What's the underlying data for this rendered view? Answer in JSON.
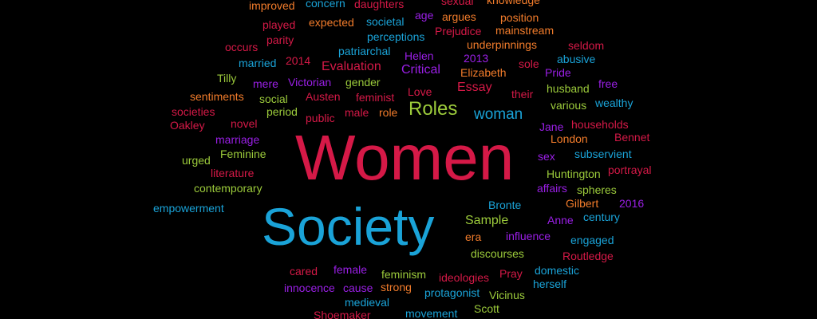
{
  "palette": {
    "red": "#d51947",
    "blue": "#1aa3d8",
    "green": "#9ccb3b",
    "purple": "#9a1fe6",
    "orange": "#f27c2b",
    "bg": "#000000"
  },
  "words": [
    {
      "text": "improved",
      "color": "orange"
    },
    {
      "text": "concern",
      "color": "blue"
    },
    {
      "text": "daughters",
      "color": "red"
    },
    {
      "text": "sexual",
      "color": "red"
    },
    {
      "text": "knowledge",
      "color": "orange"
    },
    {
      "text": "played",
      "color": "red"
    },
    {
      "text": "expected",
      "color": "orange"
    },
    {
      "text": "societal",
      "color": "blue"
    },
    {
      "text": "age",
      "color": "purple"
    },
    {
      "text": "argues",
      "color": "orange"
    },
    {
      "text": "position",
      "color": "orange"
    },
    {
      "text": "parity",
      "color": "red"
    },
    {
      "text": "perceptions",
      "color": "blue"
    },
    {
      "text": "Prejudice",
      "color": "red"
    },
    {
      "text": "mainstream",
      "color": "orange"
    },
    {
      "text": "occurs",
      "color": "red"
    },
    {
      "text": "patriarchal",
      "color": "blue"
    },
    {
      "text": "underpinnings",
      "color": "orange"
    },
    {
      "text": "seldom",
      "color": "red"
    },
    {
      "text": "married",
      "color": "blue"
    },
    {
      "text": "2014",
      "color": "red"
    },
    {
      "text": "Helen",
      "color": "purple"
    },
    {
      "text": "2013",
      "color": "purple"
    },
    {
      "text": "sole",
      "color": "red"
    },
    {
      "text": "abusive",
      "color": "blue"
    },
    {
      "text": "Evaluation",
      "color": "red"
    },
    {
      "text": "Critical",
      "color": "purple"
    },
    {
      "text": "Elizabeth",
      "color": "orange"
    },
    {
      "text": "Pride",
      "color": "purple"
    },
    {
      "text": "Tilly",
      "color": "green"
    },
    {
      "text": "mere",
      "color": "purple"
    },
    {
      "text": "Victorian",
      "color": "purple"
    },
    {
      "text": "gender",
      "color": "green"
    },
    {
      "text": "Essay",
      "color": "red"
    },
    {
      "text": "husband",
      "color": "green"
    },
    {
      "text": "free",
      "color": "purple"
    },
    {
      "text": "sentiments",
      "color": "orange"
    },
    {
      "text": "social",
      "color": "green"
    },
    {
      "text": "Austen",
      "color": "red"
    },
    {
      "text": "feminist",
      "color": "red"
    },
    {
      "text": "Love",
      "color": "red"
    },
    {
      "text": "their",
      "color": "red"
    },
    {
      "text": "various",
      "color": "green"
    },
    {
      "text": "wealthy",
      "color": "blue"
    },
    {
      "text": "societies",
      "color": "red"
    },
    {
      "text": "period",
      "color": "green"
    },
    {
      "text": "Roles",
      "color": "green"
    },
    {
      "text": "male",
      "color": "red"
    },
    {
      "text": "role",
      "color": "orange"
    },
    {
      "text": "woman",
      "color": "blue"
    },
    {
      "text": "public",
      "color": "red"
    },
    {
      "text": "Oakley",
      "color": "red"
    },
    {
      "text": "novel",
      "color": "red"
    },
    {
      "text": "Jane",
      "color": "purple"
    },
    {
      "text": "households",
      "color": "red"
    },
    {
      "text": "Bennet",
      "color": "red"
    },
    {
      "text": "marriage",
      "color": "purple"
    },
    {
      "text": "London",
      "color": "orange"
    },
    {
      "text": "Women",
      "color": "red"
    },
    {
      "text": "Feminine",
      "color": "green"
    },
    {
      "text": "sex",
      "color": "purple"
    },
    {
      "text": "subservient",
      "color": "blue"
    },
    {
      "text": "urged",
      "color": "green"
    },
    {
      "text": "literature",
      "color": "red"
    },
    {
      "text": "Huntington",
      "color": "green"
    },
    {
      "text": "portrayal",
      "color": "red"
    },
    {
      "text": "affairs",
      "color": "purple"
    },
    {
      "text": "spheres",
      "color": "green"
    },
    {
      "text": "contemporary",
      "color": "green"
    },
    {
      "text": "Bronte",
      "color": "blue"
    },
    {
      "text": "Gilbert",
      "color": "orange"
    },
    {
      "text": "2016",
      "color": "purple"
    },
    {
      "text": "empowerment",
      "color": "blue"
    },
    {
      "text": "century",
      "color": "blue"
    },
    {
      "text": "Society",
      "color": "blue"
    },
    {
      "text": "Sample",
      "color": "green"
    },
    {
      "text": "Anne",
      "color": "purple"
    },
    {
      "text": "era",
      "color": "orange"
    },
    {
      "text": "influence",
      "color": "purple"
    },
    {
      "text": "engaged",
      "color": "blue"
    },
    {
      "text": "discourses",
      "color": "green"
    },
    {
      "text": "Routledge",
      "color": "red"
    },
    {
      "text": "cared",
      "color": "red"
    },
    {
      "text": "female",
      "color": "purple"
    },
    {
      "text": "feminism",
      "color": "green"
    },
    {
      "text": "domestic",
      "color": "blue"
    },
    {
      "text": "ideologies",
      "color": "red"
    },
    {
      "text": "Pray",
      "color": "red"
    },
    {
      "text": "herself",
      "color": "blue"
    },
    {
      "text": "innocence",
      "color": "purple"
    },
    {
      "text": "cause",
      "color": "purple"
    },
    {
      "text": "strong",
      "color": "orange"
    },
    {
      "text": "protagonist",
      "color": "blue"
    },
    {
      "text": "Vicinus",
      "color": "green"
    },
    {
      "text": "medieval",
      "color": "blue"
    },
    {
      "text": "Scott",
      "color": "green"
    },
    {
      "text": "Shoemaker",
      "color": "red"
    },
    {
      "text": "movement",
      "color": "blue"
    }
  ]
}
